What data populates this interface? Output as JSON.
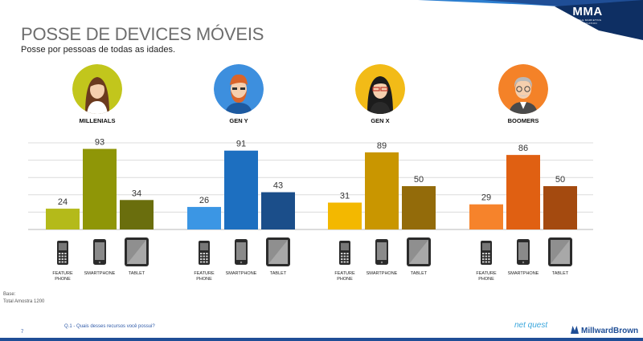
{
  "header": {
    "title": "POSSE DE DEVICES MÓVEIS",
    "subtitle": "Posse por pessoas de todas as idades.",
    "logo_text": "MMA",
    "logo_tagline": "MOBILE MARKETING ASSOCIATION"
  },
  "footer": {
    "base_label": "Base:",
    "base_value": "Total Amostra 1200",
    "question": "Q.1 - Quais desses recursos você possui?",
    "page_number": "7",
    "partner_netquest": "net quest",
    "partner_millward": "MillwardBrown"
  },
  "colors": {
    "accent_dark": "#1f4e96",
    "accent_light": "#2d7fd0",
    "grid": "#dcdcdc"
  },
  "chart_data": {
    "type": "bar",
    "title": "POSSE DE DEVICES MÓVEIS",
    "ylim": [
      0,
      100
    ],
    "grid": true,
    "categories": [
      "FEATURE PHONE",
      "SMARTPHONE",
      "TABLET"
    ],
    "category_lines": [
      [
        "FEATURE",
        "PHONE"
      ],
      [
        "SMARTPHONE"
      ],
      [
        "TABLET"
      ]
    ],
    "groups": [
      {
        "name": "MILLENIALS",
        "values": [
          24,
          93,
          34
        ],
        "colors": [
          "#b4ba1a",
          "#8f9607",
          "#6a6e0d"
        ],
        "avatar_bg": "#c2c61c"
      },
      {
        "name": "GEN Y",
        "values": [
          26,
          91,
          43
        ],
        "colors": [
          "#3b96e4",
          "#1d6fc0",
          "#1b4e8a"
        ],
        "avatar_bg": "#3d8fde"
      },
      {
        "name": "GEN X",
        "values": [
          31,
          89,
          50
        ],
        "colors": [
          "#f3b800",
          "#c99600",
          "#936b0a"
        ],
        "avatar_bg": "#f2bb17"
      },
      {
        "name": "BOOMERS",
        "values": [
          29,
          86,
          50
        ],
        "colors": [
          "#f6832b",
          "#e06012",
          "#a44a0f"
        ],
        "avatar_bg": "#f48228"
      }
    ]
  }
}
